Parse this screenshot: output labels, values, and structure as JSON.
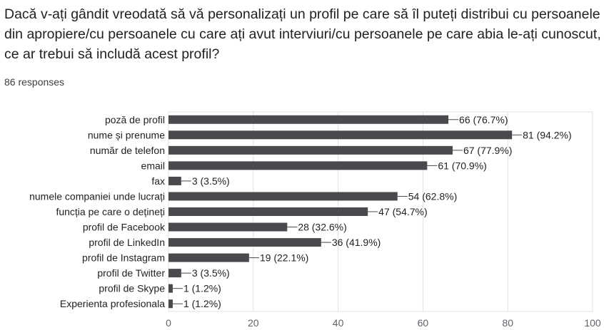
{
  "question": {
    "title": "Dacă v-ați gândit vreodată să vă personalizați un profil pe care să îl puteți distribui cu persoanele din apropiere/cu persoanele cu care ați avut interviuri/cu persoanele pe care abia le-ați cunoscut, ce ar trebui să includă acest profil?",
    "responses": "86 responses"
  },
  "colors": {
    "bar": "#4a4a4e",
    "gridline": "#e0e0e0",
    "axis_text": "#5f6368",
    "label_text": "#222222"
  },
  "chart_data": {
    "type": "bar",
    "orientation": "horizontal",
    "categories": [
      "poză de profil",
      "nume și prenume",
      "număr de telefon",
      "email",
      "fax",
      "numele companiei unde lucrați",
      "funcția pe care o dețineți",
      "profil de Facebook",
      "profil de LinkedIn",
      "profil de Instagram",
      "profil de Twitter",
      "profil de Skype",
      "Experienta profesionala"
    ],
    "values": [
      66,
      81,
      67,
      61,
      3,
      54,
      47,
      28,
      36,
      19,
      3,
      1,
      1
    ],
    "data_labels": [
      "66 (76.7%)",
      "81 (94.2%)",
      "67 (77.9%)",
      "61 (70.9%)",
      "3 (3.5%)",
      "54 (62.8%)",
      "47 (54.7%)",
      "28 (32.6%)",
      "36 (41.9%)",
      "19 (22.1%)",
      "3 (3.5%)",
      "1 (1.2%)",
      "1 (1.2%)"
    ],
    "xlim": [
      0,
      100
    ],
    "xticks": [
      0,
      20,
      40,
      60,
      80,
      100
    ],
    "grid": true
  }
}
